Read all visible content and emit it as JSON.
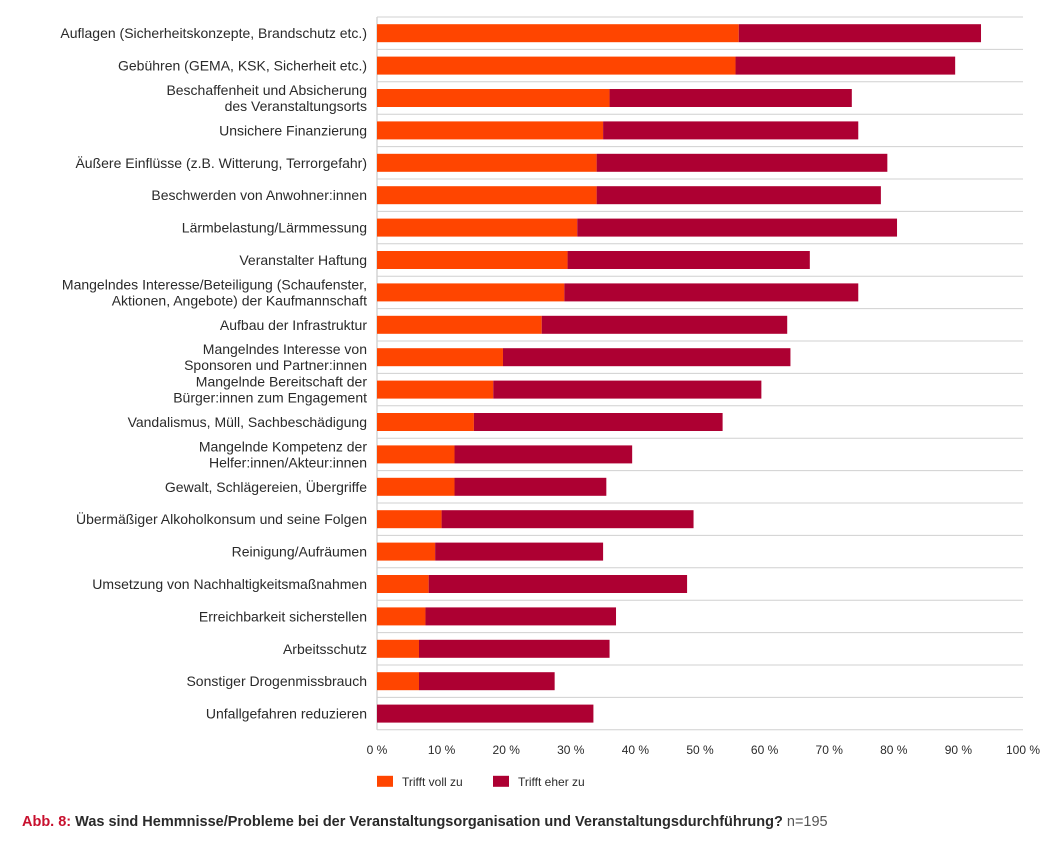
{
  "chart_data": {
    "type": "bar",
    "orientation": "horizontal",
    "stacked": true,
    "categories": [
      [
        "Auflagen (Sicherheitskonzepte, Brandschutz etc.)"
      ],
      [
        "Gebühren (GEMA, KSK, Sicherheit etc.)"
      ],
      [
        "Beschaffenheit und Absicherung",
        "des Veranstaltungsorts"
      ],
      [
        "Unsichere Finanzierung"
      ],
      [
        "Äußere Einflüsse (z.B. Witterung, Terrorgefahr)"
      ],
      [
        "Beschwerden von Anwohner:innen"
      ],
      [
        "Lärmbelastung/Lärmmessung"
      ],
      [
        "Veranstalter Haftung"
      ],
      [
        "Mangelndes Interesse/Beteiligung (Schaufenster,",
        "Aktionen, Angebote) der Kaufmannschaft"
      ],
      [
        "Aufbau der Infrastruktur"
      ],
      [
        "Mangelndes Interesse von",
        "Sponsoren und Partner:innen"
      ],
      [
        "Mangelnde Bereitschaft der",
        "Bürger:innen zum Engagement"
      ],
      [
        "Vandalismus, Müll, Sachbeschädigung"
      ],
      [
        "Mangelnde Kompetenz der",
        "Helfer:innen/Akteur:innen"
      ],
      [
        "Gewalt, Schlägereien, Übergriffe"
      ],
      [
        "Übermäßiger Alkoholkonsum und seine Folgen"
      ],
      [
        "Reinigung/Aufräumen"
      ],
      [
        "Umsetzung von Nachhaltigkeitsmaßnahmen"
      ],
      [
        "Erreichbarkeit sicherstellen"
      ],
      [
        "Arbeitsschutz"
      ],
      [
        "Sonstiger Drogenmissbrauch"
      ],
      [
        "Unfallgefahren reduzieren"
      ]
    ],
    "series": [
      {
        "name": "Trifft voll zu",
        "color": "#ff4500",
        "values": [
          56,
          55.5,
          36,
          35,
          34,
          34,
          31,
          29.5,
          29,
          25.5,
          19.5,
          18,
          15,
          12,
          12,
          10,
          9,
          8,
          7.5,
          6.5,
          6.5,
          0
        ]
      },
      {
        "name": "Trifft eher zu",
        "color": "#ad0032",
        "values": [
          37.5,
          34,
          37.5,
          39.5,
          45,
          44,
          49.5,
          37.5,
          45.5,
          38,
          44.5,
          41.5,
          38.5,
          27.5,
          23.5,
          39,
          26,
          40,
          29.5,
          29.5,
          21,
          33.5
        ]
      }
    ],
    "x_ticks": [
      "0 %",
      "10 %",
      "20 %",
      "30 %",
      "40 %",
      "50 %",
      "60 %",
      "70 %",
      "80 %",
      "90 %",
      "100 %"
    ],
    "xlim": [
      0,
      100
    ],
    "grid": true,
    "legend_position": "bottom-left"
  },
  "caption": {
    "prefix": "Abb. 8:",
    "title": "Was sind Hemmnisse/Probleme bei der Veranstaltungsorganisation und Veranstaltungsdurchführung?",
    "n": "n=195"
  }
}
